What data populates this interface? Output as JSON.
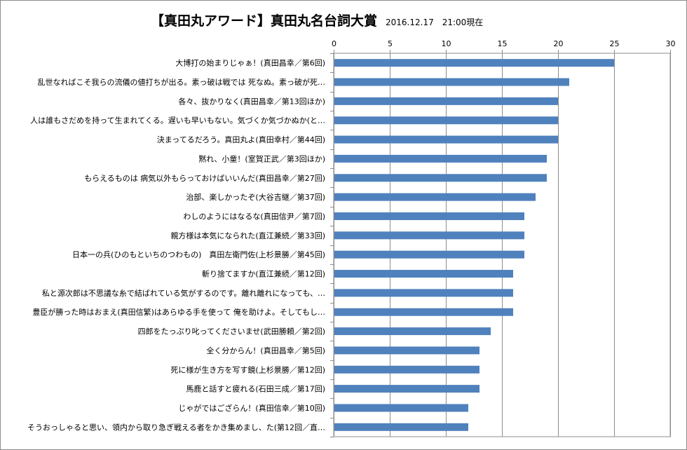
{
  "chart_data": {
    "type": "bar",
    "orientation": "horizontal",
    "title": "【真田丸アワード】真田丸名台詞大賞",
    "subtitle": "2016.12.17　21:00現在",
    "xlabel": "",
    "ylabel": "",
    "xlim": [
      0,
      30
    ],
    "x_ticks": [
      "0",
      "5",
      "10",
      "15",
      "20",
      "25",
      "30"
    ],
    "tick_axis_position": "top",
    "grid": "vertical",
    "legend": "none",
    "bar_color": "#4f81bd",
    "categories": [
      "大博打の始まりじゃぁ！(真田昌幸／第6回)",
      "乱世なればこそ我らの流儀の値打ちが出る。素っ破は戦では 死なぬ。素っ破が死…",
      "各々、抜かりなく(真田昌幸／第13回ほか)",
      "人は誰もさだめを持って生まれてくる。遅いも早いもない。気づくか気づかぬか(と…",
      "決まってるだろう。真田丸よ(真田幸村／第44回)",
      "黙れ、小童！(室賀正武／第3回ほか)",
      "もらえるものは 病気以外もらっておけばいいんだ(真田昌幸／第27回)",
      "治部、楽しかったぞ(大谷吉継／第37回)",
      "わしのようにはなるな(真田信尹／第7回)",
      "親方様は本気になられた(直江兼続／第33回)",
      "日本一の兵(ひのもといちのつわもの)　真田左衛門佐(上杉景勝／第45回)",
      "斬り捨てますか(直江兼続／第12回)",
      "私と源次郎は不思議な糸で結ばれている気がするのです。離れ離れになっても、…",
      "豊臣が勝った時はおまえ(真田信繁)はあらゆる手を使って 俺を助けよ。そしてもし…",
      "四郎をたっぷり叱ってくださいませ(武田勝頼／第2回)",
      "全く分からん！(真田昌幸／第5回)",
      "死に様が生き方を写す鏡(上杉景勝／第12回)",
      "馬鹿と話すと疲れる(石田三成／第17回)",
      "じゃがではござらん！(真田信幸／第10回)",
      "そうおっしゃると思い、領内から取り急ぎ戦える者をかき集めまし、た(第12回／直…"
    ],
    "values": [
      25,
      21,
      20,
      20,
      20,
      19,
      19,
      18,
      17,
      17,
      17,
      16,
      16,
      16,
      14,
      13,
      13,
      13,
      12,
      12
    ]
  }
}
